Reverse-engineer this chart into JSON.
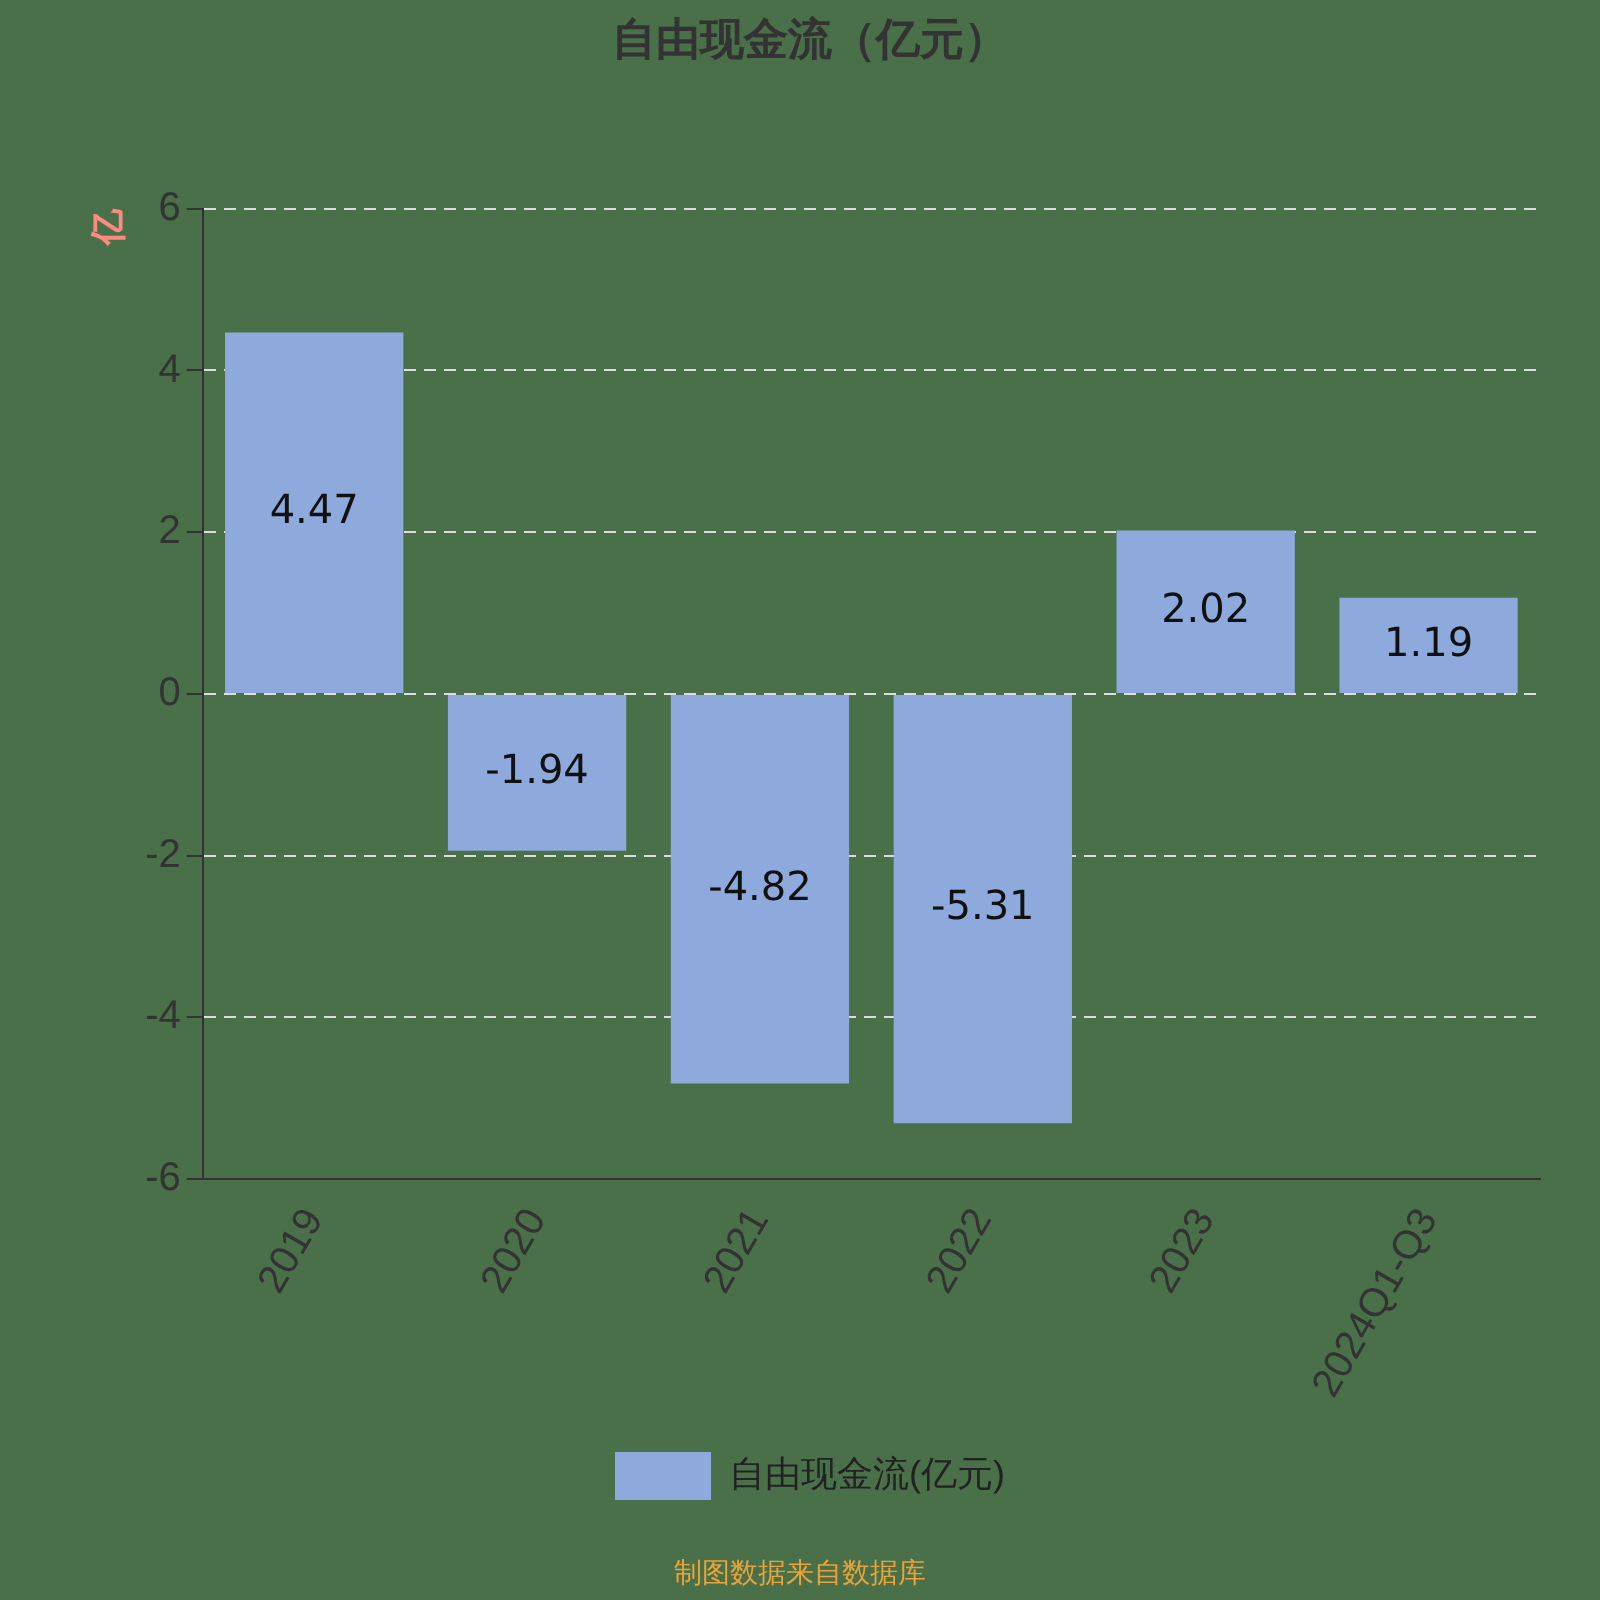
{
  "chart_data": {
    "type": "bar",
    "title": "自由现金流（亿元）",
    "ylabel": "亿",
    "categories": [
      "2019",
      "2020",
      "2021",
      "2022",
      "2023",
      "2024Q1-Q3"
    ],
    "series": [
      {
        "name": "自由现金流(亿元)",
        "color": "#8eaadc",
        "values": [
          4.47,
          -1.94,
          -4.82,
          -5.31,
          2.02,
          1.19
        ]
      }
    ],
    "ylim": [
      -6,
      6
    ],
    "yticks": [
      -6,
      -4,
      -2,
      0,
      2,
      4,
      6
    ],
    "grid": "y",
    "legend": "bottom",
    "data_labels": true,
    "annotations": [
      "制图数据来自数据库"
    ]
  }
}
